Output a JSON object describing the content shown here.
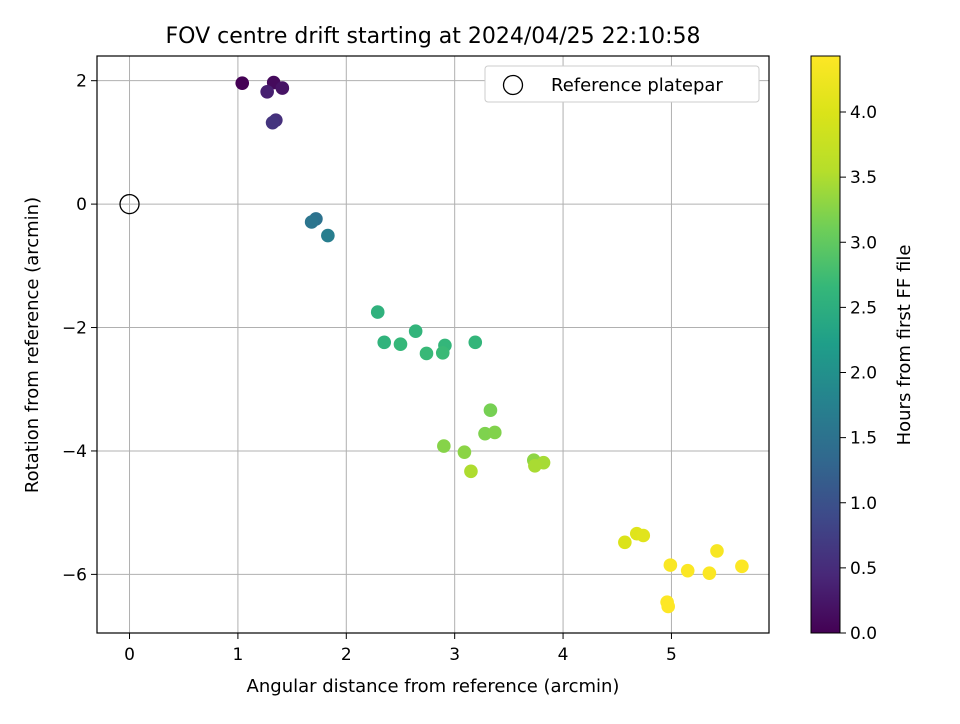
{
  "chart_data": {
    "type": "scatter",
    "title": "FOV centre drift starting at 2024/04/25 22:10:58",
    "xlabel": "Angular distance from reference (arcmin)",
    "ylabel": "Rotation from reference (arcmin)",
    "xlim": [
      -0.3,
      5.9
    ],
    "ylim": [
      -6.95,
      2.4
    ],
    "grid": true,
    "legend_position": "top-right",
    "x_ticks": [
      {
        "v": 0,
        "label": "0"
      },
      {
        "v": 1,
        "label": "1"
      },
      {
        "v": 2,
        "label": "2"
      },
      {
        "v": 3,
        "label": "3"
      },
      {
        "v": 4,
        "label": "4"
      },
      {
        "v": 5,
        "label": "5"
      }
    ],
    "y_ticks": [
      {
        "v": 2,
        "label": "2"
      },
      {
        "v": 0,
        "label": "0"
      },
      {
        "v": -2,
        "label": "−2"
      },
      {
        "v": -4,
        "label": "−4"
      },
      {
        "v": -6,
        "label": "−6"
      }
    ],
    "reference": {
      "name": "Reference platepar",
      "x": 0,
      "y": 0
    },
    "colorbar": {
      "label": "Hours from first FF file",
      "colormap": "viridis",
      "range": [
        0,
        4.43
      ],
      "ticks": [
        {
          "v": 0.0,
          "label": "0.0"
        },
        {
          "v": 0.5,
          "label": "0.5"
        },
        {
          "v": 1.0,
          "label": "1.0"
        },
        {
          "v": 1.5,
          "label": "1.5"
        },
        {
          "v": 2.0,
          "label": "2.0"
        },
        {
          "v": 2.5,
          "label": "2.5"
        },
        {
          "v": 3.0,
          "label": "3.0"
        },
        {
          "v": 3.5,
          "label": "3.5"
        },
        {
          "v": 4.0,
          "label": "4.0"
        }
      ]
    },
    "points": [
      {
        "x": 1.04,
        "y": 1.96,
        "t": 0.0
      },
      {
        "x": 1.33,
        "y": 1.97,
        "t": 0.1
      },
      {
        "x": 1.41,
        "y": 1.88,
        "t": 0.2
      },
      {
        "x": 1.27,
        "y": 1.82,
        "t": 0.35
      },
      {
        "x": 1.35,
        "y": 1.36,
        "t": 0.55
      },
      {
        "x": 1.32,
        "y": 1.32,
        "t": 0.6
      },
      {
        "x": 1.72,
        "y": -0.24,
        "t": 1.5
      },
      {
        "x": 1.68,
        "y": -0.29,
        "t": 1.55
      },
      {
        "x": 1.83,
        "y": -0.51,
        "t": 1.7
      },
      {
        "x": 2.29,
        "y": -1.75,
        "t": 2.55
      },
      {
        "x": 2.64,
        "y": -2.06,
        "t": 2.6
      },
      {
        "x": 3.19,
        "y": -2.24,
        "t": 2.62
      },
      {
        "x": 2.91,
        "y": -2.29,
        "t": 2.64
      },
      {
        "x": 2.35,
        "y": -2.24,
        "t": 2.58
      },
      {
        "x": 2.5,
        "y": -2.27,
        "t": 2.66
      },
      {
        "x": 2.74,
        "y": -2.42,
        "t": 2.68
      },
      {
        "x": 2.89,
        "y": -2.41,
        "t": 2.7
      },
      {
        "x": 3.33,
        "y": -3.34,
        "t": 3.15
      },
      {
        "x": 3.28,
        "y": -3.72,
        "t": 3.2
      },
      {
        "x": 3.37,
        "y": -3.7,
        "t": 3.22
      },
      {
        "x": 2.9,
        "y": -3.92,
        "t": 3.25
      },
      {
        "x": 3.09,
        "y": -4.02,
        "t": 3.28
      },
      {
        "x": 3.73,
        "y": -4.15,
        "t": 3.3
      },
      {
        "x": 3.82,
        "y": -4.19,
        "t": 3.45
      },
      {
        "x": 3.74,
        "y": -4.24,
        "t": 3.47
      },
      {
        "x": 3.15,
        "y": -4.33,
        "t": 3.5
      },
      {
        "x": 4.57,
        "y": -5.48,
        "t": 4.0
      },
      {
        "x": 4.68,
        "y": -5.34,
        "t": 4.05
      },
      {
        "x": 4.74,
        "y": -5.37,
        "t": 4.08
      },
      {
        "x": 5.42,
        "y": -5.62,
        "t": 4.35
      },
      {
        "x": 4.99,
        "y": -5.85,
        "t": 4.38
      },
      {
        "x": 5.15,
        "y": -5.94,
        "t": 4.4
      },
      {
        "x": 5.35,
        "y": -5.98,
        "t": 4.41
      },
      {
        "x": 5.65,
        "y": -5.87,
        "t": 4.42
      },
      {
        "x": 4.96,
        "y": -6.45,
        "t": 4.42
      },
      {
        "x": 4.97,
        "y": -6.52,
        "t": 4.43
      }
    ]
  }
}
